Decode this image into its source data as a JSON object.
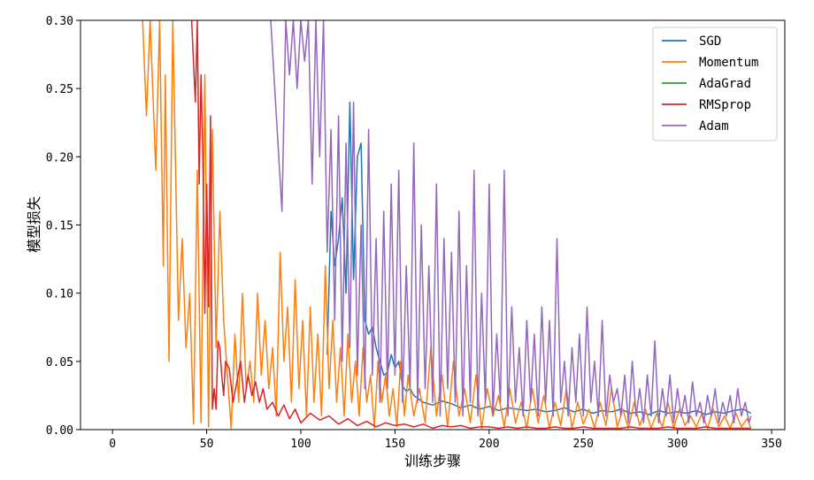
{
  "chart_data": {
    "type": "line",
    "xlabel": "训练步骤",
    "ylabel": "模型损失",
    "xlim": [
      -17,
      357
    ],
    "ylim": [
      0,
      0.3
    ],
    "xticks": [
      0,
      50,
      100,
      150,
      200,
      250,
      300,
      350
    ],
    "yticks": [
      "0.00",
      "0.05",
      "0.10",
      "0.15",
      "0.20",
      "0.25",
      "0.30"
    ],
    "legend_position": "top-right",
    "series": [
      {
        "name": "SGD",
        "color": "#1f77b4",
        "x": [
          114,
          116,
          118,
          120,
          122,
          124,
          126,
          128,
          130,
          132,
          134,
          136,
          138,
          140,
          142,
          144,
          146,
          148,
          150,
          152,
          154,
          156,
          158,
          160,
          165,
          170,
          175,
          180,
          185,
          190,
          195,
          200,
          205,
          210,
          215,
          220,
          225,
          230,
          235,
          240,
          245,
          250,
          255,
          260,
          265,
          270,
          275,
          280,
          285,
          290,
          295,
          300,
          305,
          310,
          315,
          320,
          325,
          330,
          335,
          339
        ],
        "values": [
          0.055,
          0.16,
          0.12,
          0.14,
          0.17,
          0.1,
          0.24,
          0.11,
          0.2,
          0.21,
          0.08,
          0.07,
          0.075,
          0.06,
          0.05,
          0.04,
          0.042,
          0.055,
          0.045,
          0.05,
          0.032,
          0.028,
          0.03,
          0.025,
          0.02,
          0.018,
          0.021,
          0.019,
          0.016,
          0.018,
          0.015,
          0.017,
          0.014,
          0.016,
          0.015,
          0.014,
          0.015,
          0.013,
          0.014,
          0.016,
          0.013,
          0.015,
          0.012,
          0.014,
          0.013,
          0.015,
          0.012,
          0.013,
          0.011,
          0.014,
          0.012,
          0.013,
          0.012,
          0.014,
          0.011,
          0.013,
          0.012,
          0.014,
          0.015,
          0.012
        ]
      },
      {
        "name": "Momentum",
        "color": "#ff7f0e",
        "x": [
          16,
          18,
          20,
          23,
          25,
          27,
          28,
          30,
          32,
          35,
          37,
          39,
          41,
          43,
          45,
          47,
          49,
          51,
          53,
          55,
          57,
          59,
          61,
          63,
          65,
          67,
          69,
          71,
          73,
          75,
          77,
          79,
          81,
          83,
          85,
          87,
          89,
          91,
          93,
          95,
          97,
          99,
          101,
          103,
          105,
          107,
          109,
          111,
          113,
          115,
          117,
          119,
          121,
          123,
          125,
          127,
          129,
          131,
          133,
          135,
          137,
          139,
          141,
          143,
          145,
          147,
          149,
          151,
          153,
          155,
          157,
          160,
          163,
          166,
          169,
          172,
          175,
          178,
          181,
          184,
          187,
          190,
          193,
          196,
          199,
          202,
          205,
          208,
          211,
          214,
          217,
          220,
          223,
          226,
          229,
          232,
          235,
          238,
          241,
          244,
          247,
          250,
          253,
          256,
          259,
          262,
          265,
          268,
          271,
          274,
          277,
          280,
          283,
          286,
          289,
          292,
          295,
          298,
          301,
          304,
          307,
          310,
          313,
          316,
          319,
          322,
          325,
          328,
          331,
          334,
          337,
          339
        ],
        "values": [
          0.3,
          0.23,
          0.3,
          0.19,
          0.3,
          0.12,
          0.26,
          0.05,
          0.3,
          0.08,
          0.14,
          0.06,
          0.1,
          0.004,
          0.19,
          0.005,
          0.26,
          0.002,
          0.22,
          0.06,
          0.16,
          0.08,
          0.04,
          0.001,
          0.07,
          0.02,
          0.1,
          0.03,
          0.05,
          0.02,
          0.1,
          0.04,
          0.08,
          0.03,
          0.06,
          0.01,
          0.13,
          0.05,
          0.09,
          0.02,
          0.11,
          0.03,
          0.08,
          0.01,
          0.09,
          0.02,
          0.07,
          0.01,
          0.12,
          0.03,
          0.08,
          0.02,
          0.06,
          0.01,
          0.07,
          0.02,
          0.05,
          0.01,
          0.06,
          0.02,
          0.04,
          0.001,
          0.05,
          0.02,
          0.04,
          0.01,
          0.03,
          0.002,
          0.05,
          0.01,
          0.04,
          0.01,
          0.03,
          0.005,
          0.06,
          0.01,
          0.04,
          0.002,
          0.05,
          0.01,
          0.03,
          0.005,
          0.04,
          0.001,
          0.03,
          0.01,
          0.025,
          0.002,
          0.03,
          0.005,
          0.02,
          0.001,
          0.03,
          0.005,
          0.025,
          0.001,
          0.02,
          0.003,
          0.03,
          0.001,
          0.02,
          0.004,
          0.015,
          0.001,
          0.02,
          0.003,
          0.03,
          0.002,
          0.015,
          0.001,
          0.02,
          0.003,
          0.015,
          0.001,
          0.012,
          0.002,
          0.02,
          0.001,
          0.015,
          0.003,
          0.01,
          0.002,
          0.012,
          0.001,
          0.015,
          0.002,
          0.01,
          0.001,
          0.012,
          0.002,
          0.008,
          0.001
        ]
      },
      {
        "name": "AdaGrad",
        "color": "#2ca02c",
        "x": [],
        "values": []
      },
      {
        "name": "RMSprop",
        "color": "#d62728",
        "x": [
          42,
          44,
          45,
          46,
          47,
          48,
          49,
          50,
          51,
          52,
          53,
          54,
          55,
          56,
          57,
          58,
          59,
          60,
          62,
          64,
          66,
          68,
          70,
          72,
          74,
          76,
          78,
          80,
          82,
          85,
          88,
          91,
          94,
          97,
          100,
          105,
          110,
          115,
          120,
          125,
          130,
          135,
          140,
          145,
          150,
          155,
          160,
          165,
          170,
          175,
          180,
          185,
          190,
          195,
          200,
          205,
          210,
          215,
          220,
          225,
          230,
          235,
          240,
          245,
          250,
          255,
          260,
          265,
          270,
          275,
          280,
          285,
          290,
          295,
          300,
          305,
          310,
          315,
          320,
          325,
          330,
          335,
          339
        ],
        "values": [
          0.3,
          0.24,
          0.3,
          0.18,
          0.26,
          0.2,
          0.085,
          0.18,
          0.09,
          0.23,
          0.015,
          0.03,
          0.015,
          0.065,
          0.06,
          0.04,
          0.025,
          0.05,
          0.045,
          0.02,
          0.035,
          0.05,
          0.02,
          0.04,
          0.025,
          0.035,
          0.02,
          0.03,
          0.015,
          0.02,
          0.01,
          0.018,
          0.008,
          0.015,
          0.005,
          0.012,
          0.007,
          0.01,
          0.004,
          0.008,
          0.003,
          0.006,
          0.002,
          0.005,
          0.003,
          0.004,
          0.002,
          0.004,
          0.001,
          0.003,
          0.002,
          0.003,
          0.001,
          0.002,
          0.002,
          0.001,
          0.002,
          0.001,
          0.002,
          0.001,
          0.001,
          0.002,
          0.001,
          0.001,
          0.002,
          0.001,
          0.001,
          0.001,
          0.001,
          0.002,
          0.001,
          0.001,
          0.001,
          0.002,
          0.001,
          0.001,
          0.001,
          0.002,
          0.001,
          0.001,
          0.001,
          0.001,
          0.001
        ]
      },
      {
        "name": "Adam",
        "color": "#9467bd",
        "x": [
          84,
          90,
          92,
          94,
          96,
          98,
          100,
          102,
          104,
          106,
          108,
          110,
          112,
          114,
          116,
          118,
          120,
          122,
          124,
          126,
          128,
          130,
          132,
          134,
          136,
          138,
          140,
          142,
          144,
          146,
          148,
          150,
          152,
          154,
          156,
          158,
          160,
          162,
          164,
          166,
          168,
          170,
          172,
          174,
          176,
          178,
          180,
          182,
          184,
          186,
          188,
          190,
          192,
          194,
          196,
          198,
          200,
          202,
          204,
          206,
          208,
          210,
          212,
          214,
          216,
          218,
          220,
          222,
          224,
          226,
          228,
          230,
          232,
          234,
          236,
          238,
          240,
          242,
          244,
          246,
          248,
          250,
          252,
          254,
          256,
          258,
          260,
          262,
          264,
          266,
          268,
          270,
          272,
          274,
          276,
          278,
          280,
          282,
          284,
          286,
          288,
          290,
          292,
          294,
          296,
          298,
          300,
          302,
          304,
          306,
          308,
          310,
          312,
          314,
          316,
          318,
          320,
          322,
          324,
          326,
          328,
          330,
          332,
          334,
          336,
          338,
          339
        ],
        "values": [
          0.3,
          0.16,
          0.3,
          0.26,
          0.3,
          0.25,
          0.3,
          0.27,
          0.3,
          0.18,
          0.3,
          0.2,
          0.3,
          0.13,
          0.22,
          0.08,
          0.23,
          0.05,
          0.21,
          0.06,
          0.24,
          0.04,
          0.15,
          0.03,
          0.22,
          0.04,
          0.14,
          0.02,
          0.16,
          0.03,
          0.18,
          0.04,
          0.19,
          0.02,
          0.12,
          0.03,
          0.21,
          0.02,
          0.15,
          0.03,
          0.12,
          0.02,
          0.18,
          0.01,
          0.14,
          0.03,
          0.13,
          0.02,
          0.16,
          0.01,
          0.12,
          0.02,
          0.19,
          0.01,
          0.1,
          0.02,
          0.18,
          0.01,
          0.07,
          0.02,
          0.19,
          0.01,
          0.09,
          0.02,
          0.06,
          0.01,
          0.08,
          0.02,
          0.07,
          0.01,
          0.09,
          0.02,
          0.08,
          0.01,
          0.14,
          0.02,
          0.05,
          0.01,
          0.06,
          0.02,
          0.07,
          0.01,
          0.09,
          0.02,
          0.05,
          0.01,
          0.08,
          0.01,
          0.04,
          0.02,
          0.03,
          0.01,
          0.04,
          0.005,
          0.05,
          0.01,
          0.03,
          0.005,
          0.04,
          0.01,
          0.065,
          0.005,
          0.03,
          0.01,
          0.04,
          0.005,
          0.03,
          0.01,
          0.025,
          0.005,
          0.035,
          0.01,
          0.02,
          0.005,
          0.025,
          0.01,
          0.03,
          0.005,
          0.02,
          0.01,
          0.025,
          0.005,
          0.03,
          0.01,
          0.02,
          0.005,
          0.01
        ]
      }
    ]
  }
}
